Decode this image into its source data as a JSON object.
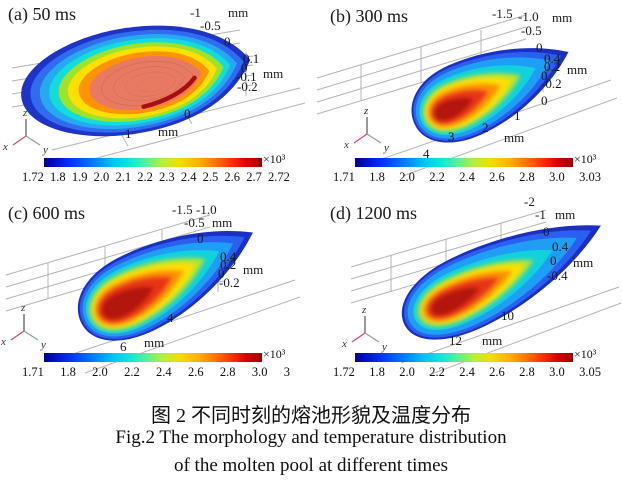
{
  "triad": {
    "x": "x",
    "y": "y",
    "z": "z"
  },
  "caption": {
    "zh": "图 2  不同时刻的熔池形貌及温度分布",
    "en1": "Fig.2  The morphology and temperature distribution",
    "en2": "of the molten pool at different times"
  },
  "subplots": [
    {
      "label": "(a) 50 ms",
      "scale": "×10³",
      "ticks": [
        "-1",
        "mm",
        "-0.5",
        "0",
        "0.1",
        "0",
        "-0.1",
        "mm",
        "-0.2",
        "0",
        "1",
        "mm"
      ],
      "cbar": [
        "1.72",
        "1.8",
        "1.9",
        "2.0",
        "2.1",
        "2.2",
        "2.3",
        "2.4",
        "2.5",
        "2.6",
        "2.7",
        "2.72"
      ]
    },
    {
      "label": "(b) 300 ms",
      "scale": "×10³",
      "ticks": [
        "-1.5",
        "-1.0",
        "mm",
        "-0.5",
        "0",
        "0.4",
        "0.2",
        "0",
        "mm",
        "-0.2",
        "0",
        "1",
        "2",
        "3",
        "mm",
        "4"
      ],
      "cbar": [
        "1.71",
        "1.8",
        "2.0",
        "2.2",
        "2.4",
        "2.6",
        "2.8",
        "3.0",
        "3.03"
      ]
    },
    {
      "label": "(c) 600 ms",
      "scale": "×10³",
      "ticks": [
        "-1.5",
        "-1.0",
        "-0.5",
        "mm",
        "0",
        "0.4",
        "0.2",
        "0",
        "mm",
        "-0.2",
        "4",
        "6",
        "mm"
      ],
      "cbar": [
        "1.71",
        "1.8",
        "2.0",
        "2.2",
        "2.4",
        "2.6",
        "2.8",
        "3.0",
        "3"
      ]
    },
    {
      "label": "(d) 1200 ms",
      "scale": "×10³",
      "ticks": [
        "-2",
        "-1",
        "mm",
        "0",
        "0.4",
        "0",
        "mm",
        "-0.4",
        "10",
        "12",
        "mm"
      ],
      "cbar": [
        "1.72",
        "1.8",
        "2.0",
        "2.2",
        "2.4",
        "2.6",
        "2.8",
        "3.0",
        "3.05"
      ]
    }
  ],
  "chart_data": [
    {
      "type": "heatmap",
      "subtype": "3d-molten-pool-isosurface",
      "title": "(a) 50 ms",
      "time_ms": 50,
      "colormap": "jet",
      "colorbar": {
        "position": "bottom",
        "scale_label": "×10³",
        "ticks": [
          1.72,
          1.8,
          1.9,
          2.0,
          2.1,
          2.2,
          2.3,
          2.4,
          2.5,
          2.6,
          2.7,
          2.72
        ],
        "range": [
          1.72,
          2.72
        ]
      },
      "x_axis": {
        "unit": "mm",
        "ticks": [
          0,
          1
        ]
      },
      "y_axis": {
        "unit": "mm",
        "ticks": [
          -1,
          -0.5,
          0
        ]
      },
      "z_axis": {
        "unit": "mm",
        "ticks": [
          0.1,
          0,
          -0.1,
          -0.2
        ]
      }
    },
    {
      "type": "heatmap",
      "subtype": "3d-molten-pool-isosurface",
      "title": "(b) 300 ms",
      "time_ms": 300,
      "colormap": "jet",
      "colorbar": {
        "position": "bottom",
        "scale_label": "×10³",
        "ticks": [
          1.71,
          1.8,
          2.0,
          2.2,
          2.4,
          2.6,
          2.8,
          3.0,
          3.03
        ],
        "range": [
          1.71,
          3.03
        ]
      },
      "x_axis": {
        "unit": "mm",
        "ticks": [
          0,
          1,
          2,
          3,
          4
        ]
      },
      "y_axis": {
        "unit": "mm",
        "ticks": [
          -1.5,
          -1.0,
          -0.5,
          0
        ]
      },
      "z_axis": {
        "unit": "mm",
        "ticks": [
          0.4,
          0.2,
          0,
          -0.2
        ]
      }
    },
    {
      "type": "heatmap",
      "subtype": "3d-molten-pool-isosurface",
      "title": "(c) 600 ms",
      "time_ms": 600,
      "colormap": "jet",
      "colorbar": {
        "position": "bottom",
        "scale_label": "×10³",
        "ticks": [
          1.71,
          1.8,
          2.0,
          2.2,
          2.4,
          2.6,
          2.8,
          3.0,
          3
        ],
        "range": [
          1.71,
          3
        ]
      },
      "x_axis": {
        "unit": "mm",
        "ticks": [
          4,
          6
        ]
      },
      "y_axis": {
        "unit": "mm",
        "ticks": [
          -1.5,
          -1.0,
          -0.5,
          0
        ]
      },
      "z_axis": {
        "unit": "mm",
        "ticks": [
          0.4,
          0.2,
          0,
          -0.2
        ]
      }
    },
    {
      "type": "heatmap",
      "subtype": "3d-molten-pool-isosurface",
      "title": "(d) 1200 ms",
      "time_ms": 1200,
      "colormap": "jet",
      "colorbar": {
        "position": "bottom",
        "scale_label": "×10³",
        "ticks": [
          1.72,
          1.8,
          2.0,
          2.2,
          2.4,
          2.6,
          2.8,
          3.0,
          3.05
        ],
        "range": [
          1.72,
          3.05
        ]
      },
      "x_axis": {
        "unit": "mm",
        "ticks": [
          10,
          12
        ]
      },
      "y_axis": {
        "unit": "mm",
        "ticks": [
          -2,
          -1,
          0
        ]
      },
      "z_axis": {
        "unit": "mm",
        "ticks": [
          0.4,
          0,
          -0.4
        ]
      }
    }
  ]
}
